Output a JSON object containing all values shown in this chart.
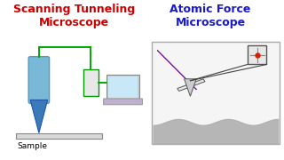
{
  "title_stm": "Scanning Tunneling\nMicroscope",
  "title_afm": "Atomic Force\nMicroscope",
  "title_stm_color": "#cc0000",
  "title_afm_color": "#1a1acc",
  "bg_color": "#ffffff",
  "sample_label": "Sample",
  "wire_color": "#00aa00",
  "stm_body_color": "#7ab8d8",
  "stm_tip_color": "#3a7ab8",
  "ctrl_box_color": "#e8e8e8",
  "laptop_screen_color": "#c8e8f8",
  "laptop_base_color": "#c0b0d0",
  "afm_box_bg": "#f5f5f5",
  "afm_surface_color": "#b0b0b0",
  "afm_cantilever_fill": "#cc88cc",
  "afm_cantilever_edge": "#8833aa",
  "afm_tip_color": "#555555",
  "detector_bg": "#e8e8e8",
  "detector_cross": "#888888",
  "laser_color": "#cc2200"
}
